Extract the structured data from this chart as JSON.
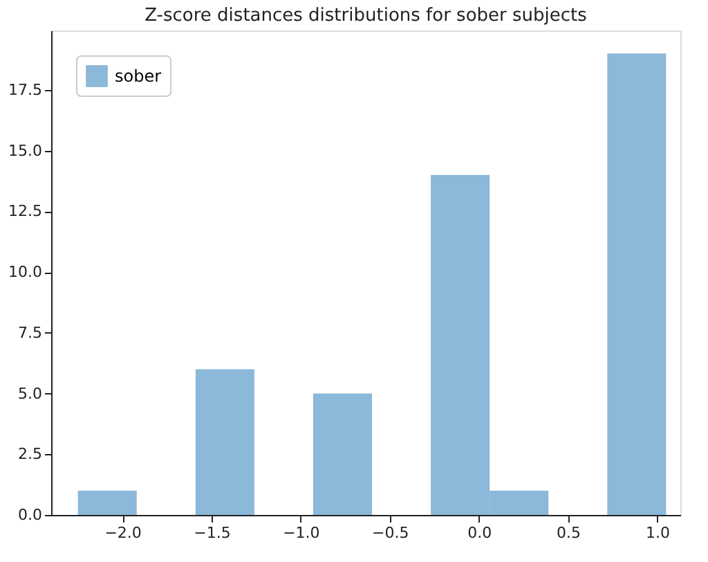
{
  "chart_data": {
    "type": "histogram",
    "title": "Z-score distances distributions for sober subjects",
    "bins": [
      -2.25,
      -1.92,
      -1.59,
      -1.26,
      -0.93,
      -0.6,
      -0.27,
      0.06,
      0.39,
      0.72,
      1.05
    ],
    "series": [
      {
        "name": "sober",
        "color": "#8cb8d9",
        "values": [
          1,
          0,
          6,
          0,
          5,
          0,
          14,
          1,
          0,
          19
        ]
      }
    ],
    "xlim": [
      -2.4,
      1.13
    ],
    "xticks": [
      {
        "value": -2,
        "label": "−2.0"
      },
      {
        "value": -1.5,
        "label": "−1.5"
      },
      {
        "value": -1,
        "label": "−1.0"
      },
      {
        "value": -0.5,
        "label": "−0.5"
      },
      {
        "value": 0,
        "label": "0.0"
      },
      {
        "value": 0.5,
        "label": "0.5"
      },
      {
        "value": 1,
        "label": "1.0"
      }
    ],
    "ylim": [
      0,
      19.95
    ],
    "yticks": [
      {
        "value": 0,
        "label": "0.0"
      },
      {
        "value": 2.5,
        "label": "2.5"
      },
      {
        "value": 5,
        "label": "5.0"
      },
      {
        "value": 7.5,
        "label": "7.5"
      },
      {
        "value": 10,
        "label": "10.0"
      },
      {
        "value": 12.5,
        "label": "12.5"
      },
      {
        "value": 15,
        "label": "15.0"
      },
      {
        "value": 17.5,
        "label": "17.5"
      }
    ],
    "grid": false,
    "legend": "top left"
  }
}
